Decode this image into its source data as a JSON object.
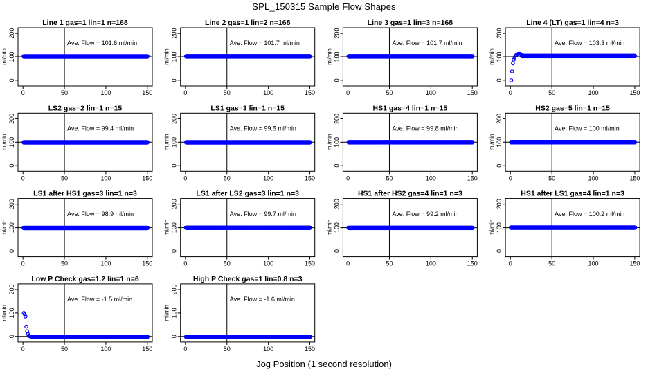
{
  "figure": {
    "title": "SPL_150315  Sample Flow Shapes",
    "xlabel": "Jog Position (1 second resolution)"
  },
  "chart_data": [
    {
      "type": "scatter",
      "title": "Line 1 gas=1 lin=1 n=168",
      "ylabel": "ml/min",
      "annotation": "Ave. Flow = 101.6  ml/min",
      "xlim": [
        0,
        150
      ],
      "ylim": [
        0,
        200
      ],
      "x_ticks": [
        0,
        50,
        100,
        150
      ],
      "y_ticks": [
        0,
        100,
        200
      ],
      "vline_x": 50,
      "hline_y": 100,
      "point_color": "#0000ff",
      "series": [
        {
          "x_start": 1,
          "x_end": 150,
          "y": 101.6
        }
      ]
    },
    {
      "type": "scatter",
      "title": "Line 2 gas=1 lin=2 n=168",
      "ylabel": "ml/min",
      "annotation": "Ave. Flow = 101.7  ml/min",
      "xlim": [
        0,
        150
      ],
      "ylim": [
        0,
        200
      ],
      "x_ticks": [
        0,
        50,
        100,
        150
      ],
      "y_ticks": [
        0,
        100,
        200
      ],
      "vline_x": 50,
      "hline_y": 100,
      "point_color": "#0000ff",
      "series": [
        {
          "x_start": 1,
          "x_end": 150,
          "y": 101.7
        }
      ]
    },
    {
      "type": "scatter",
      "title": "Line 3 gas=1 lin=3 n=168",
      "ylabel": "ml/min",
      "annotation": "Ave. Flow = 101.7  ml/min",
      "xlim": [
        0,
        150
      ],
      "ylim": [
        0,
        200
      ],
      "x_ticks": [
        0,
        50,
        100,
        150
      ],
      "y_ticks": [
        0,
        100,
        200
      ],
      "vline_x": 50,
      "hline_y": 100,
      "point_color": "#0000ff",
      "series": [
        {
          "x_start": 1,
          "x_end": 150,
          "y": 101.7
        }
      ]
    },
    {
      "type": "scatter",
      "title": "Line 4 (LT) gas=1 lin=4 n=3",
      "ylabel": "ml/min",
      "annotation": "Ave. Flow = 103.3  ml/min",
      "xlim": [
        0,
        150
      ],
      "ylim": [
        0,
        200
      ],
      "x_ticks": [
        0,
        50,
        100,
        150
      ],
      "y_ticks": [
        0,
        100,
        200
      ],
      "vline_x": 50,
      "hline_y": 100,
      "point_color": "#0000ff",
      "series": [
        {
          "x_start": 14,
          "x_end": 150,
          "y": 103.3,
          "points": [
            [
              1,
              0
            ],
            [
              2,
              38
            ],
            [
              3,
              72
            ],
            [
              4,
              88
            ],
            [
              5,
              97
            ],
            [
              6,
              103
            ],
            [
              7,
              107
            ],
            [
              8,
              110
            ],
            [
              9,
              112
            ],
            [
              10,
              113
            ],
            [
              11,
              113
            ],
            [
              12,
              112
            ],
            [
              13,
              110
            ]
          ]
        }
      ]
    },
    {
      "type": "scatter",
      "title": "LS2 gas=2 lin=1 n=15",
      "ylabel": "ml/min",
      "annotation": "Ave. Flow = 99.4  ml/min",
      "xlim": [
        0,
        150
      ],
      "ylim": [
        0,
        200
      ],
      "x_ticks": [
        0,
        50,
        100,
        150
      ],
      "y_ticks": [
        0,
        100,
        200
      ],
      "vline_x": 50,
      "hline_y": 100,
      "point_color": "#0000ff",
      "series": [
        {
          "x_start": 1,
          "x_end": 150,
          "y": 99.4
        }
      ]
    },
    {
      "type": "scatter",
      "title": "LS1 gas=3 lin=1 n=15",
      "ylabel": "ml/min",
      "annotation": "Ave. Flow = 99.5  ml/min",
      "xlim": [
        0,
        150
      ],
      "ylim": [
        0,
        200
      ],
      "x_ticks": [
        0,
        50,
        100,
        150
      ],
      "y_ticks": [
        0,
        100,
        200
      ],
      "vline_x": 50,
      "hline_y": 100,
      "point_color": "#0000ff",
      "series": [
        {
          "x_start": 1,
          "x_end": 150,
          "y": 99.5
        }
      ]
    },
    {
      "type": "scatter",
      "title": "HS1 gas=4 lin=1 n=15",
      "ylabel": "ml/min",
      "annotation": "Ave. Flow = 99.8  ml/min",
      "xlim": [
        0,
        150
      ],
      "ylim": [
        0,
        200
      ],
      "x_ticks": [
        0,
        50,
        100,
        150
      ],
      "y_ticks": [
        0,
        100,
        200
      ],
      "vline_x": 50,
      "hline_y": 100,
      "point_color": "#0000ff",
      "series": [
        {
          "x_start": 1,
          "x_end": 150,
          "y": 99.8
        }
      ]
    },
    {
      "type": "scatter",
      "title": "HS2 gas=5 lin=1 n=15",
      "ylabel": "ml/min",
      "annotation": "Ave. Flow = 100  ml/min",
      "xlim": [
        0,
        150
      ],
      "ylim": [
        0,
        200
      ],
      "x_ticks": [
        0,
        50,
        100,
        150
      ],
      "y_ticks": [
        0,
        100,
        200
      ],
      "vline_x": 50,
      "hline_y": 100,
      "point_color": "#0000ff",
      "series": [
        {
          "x_start": 1,
          "x_end": 150,
          "y": 100
        }
      ]
    },
    {
      "type": "scatter",
      "title": "LS1 after HS1 gas=3 lin=1 n=3",
      "ylabel": "ml/min",
      "annotation": "Ave. Flow = 98.9  ml/min",
      "xlim": [
        0,
        150
      ],
      "ylim": [
        0,
        200
      ],
      "x_ticks": [
        0,
        50,
        100,
        150
      ],
      "y_ticks": [
        0,
        100,
        200
      ],
      "vline_x": 50,
      "hline_y": 100,
      "point_color": "#0000ff",
      "series": [
        {
          "x_start": 1,
          "x_end": 150,
          "y": 98.9
        }
      ]
    },
    {
      "type": "scatter",
      "title": "LS1 after LS2 gas=3 lin=1 n=3",
      "ylabel": "ml/min",
      "annotation": "Ave. Flow = 99.7  ml/min",
      "xlim": [
        0,
        150
      ],
      "ylim": [
        0,
        200
      ],
      "x_ticks": [
        0,
        50,
        100,
        150
      ],
      "y_ticks": [
        0,
        100,
        200
      ],
      "vline_x": 50,
      "hline_y": 100,
      "point_color": "#0000ff",
      "series": [
        {
          "x_start": 1,
          "x_end": 150,
          "y": 99.7
        }
      ]
    },
    {
      "type": "scatter",
      "title": "HS1 after HS2 gas=4 lin=1 n=3",
      "ylabel": "ml/min",
      "annotation": "Ave. Flow = 99.2  ml/min",
      "xlim": [
        0,
        150
      ],
      "ylim": [
        0,
        200
      ],
      "x_ticks": [
        0,
        50,
        100,
        150
      ],
      "y_ticks": [
        0,
        100,
        200
      ],
      "vline_x": 50,
      "hline_y": 100,
      "point_color": "#0000ff",
      "series": [
        {
          "x_start": 1,
          "x_end": 150,
          "y": 99.2
        }
      ]
    },
    {
      "type": "scatter",
      "title": "HS1 after LS1 gas=4 lin=1 n=3",
      "ylabel": "ml/min",
      "annotation": "Ave. Flow = 100.2  ml/min",
      "xlim": [
        0,
        150
      ],
      "ylim": [
        0,
        200
      ],
      "x_ticks": [
        0,
        50,
        100,
        150
      ],
      "y_ticks": [
        0,
        100,
        200
      ],
      "vline_x": 50,
      "hline_y": 100,
      "point_color": "#0000ff",
      "series": [
        {
          "x_start": 1,
          "x_end": 150,
          "y": 100.2
        }
      ]
    },
    {
      "type": "scatter",
      "title": "Low P Check gas=1.2 lin=1 n=6",
      "ylabel": "ml/min",
      "annotation": "Ave. Flow = -1.5  ml/min",
      "xlim": [
        0,
        150
      ],
      "ylim": [
        0,
        200
      ],
      "x_ticks": [
        0,
        50,
        100,
        150
      ],
      "y_ticks": [
        0,
        100,
        200
      ],
      "vline_x": 50,
      "hline_y": 0,
      "point_color": "#0000ff",
      "series": [
        {
          "x_start": 11,
          "x_end": 150,
          "y": -1.5,
          "points": [
            [
              1,
              100
            ],
            [
              2,
              95
            ],
            [
              3,
              85
            ],
            [
              4,
              42
            ],
            [
              5,
              22
            ],
            [
              6,
              10
            ],
            [
              7,
              4
            ],
            [
              8,
              1
            ],
            [
              9,
              0
            ],
            [
              10,
              -1
            ]
          ]
        }
      ]
    },
    {
      "type": "scatter",
      "title": "High P Check gas=1 lin=0.8 n=3",
      "ylabel": "ml/min",
      "annotation": "Ave. Flow = -1.6  ml/min",
      "xlim": [
        0,
        150
      ],
      "ylim": [
        0,
        200
      ],
      "x_ticks": [
        0,
        50,
        100,
        150
      ],
      "y_ticks": [
        0,
        100,
        200
      ],
      "vline_x": 50,
      "hline_y": 0,
      "point_color": "#0000ff",
      "series": [
        {
          "x_start": 1,
          "x_end": 150,
          "y": -1.6
        }
      ]
    }
  ]
}
